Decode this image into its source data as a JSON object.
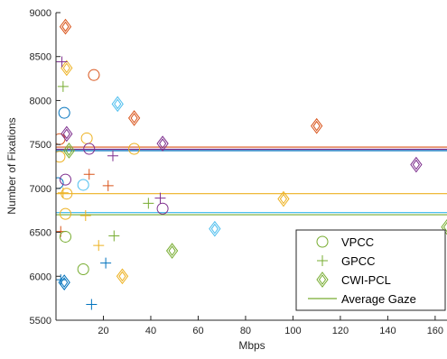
{
  "chart_data": {
    "type": "scatter",
    "xlabel": "Mbps",
    "ylabel": "Number of Fixations",
    "xlim": [
      0,
      165
    ],
    "ylim": [
      5500,
      9000
    ],
    "xticks": [
      20,
      40,
      60,
      80,
      100,
      120,
      140,
      160
    ],
    "yticks": [
      5500,
      6000,
      6500,
      7000,
      7500,
      8000,
      8500,
      9000
    ],
    "grid": false,
    "legend_position": "bottom-right",
    "legend": [
      {
        "label": "VPCC",
        "marker": "circle",
        "color": "#77ac30"
      },
      {
        "label": "GPCC",
        "marker": "plus",
        "color": "#77ac30"
      },
      {
        "label": "CWI-PCL",
        "marker": "diamond",
        "color": "#77ac30"
      },
      {
        "label": "Average Gaze",
        "marker": "line",
        "color": "#77ac30"
      }
    ],
    "average_lines": [
      {
        "color": "#d95319",
        "y": 7470
      },
      {
        "color": "#7e2f8e",
        "y": 7445
      },
      {
        "color": "#0072bd",
        "y": 7430
      },
      {
        "color": "#edb120",
        "y": 6940
      },
      {
        "color": "#4dbeee",
        "y": 6725
      },
      {
        "color": "#77ac30",
        "y": 6700
      }
    ],
    "series": [
      {
        "color": "#0072bd",
        "marker": "circle",
        "points": [
          [
            0.8,
            7060
          ],
          [
            3.5,
            7860
          ]
        ]
      },
      {
        "color": "#0072bd",
        "marker": "plus",
        "points": [
          [
            2,
            5960
          ],
          [
            21,
            6150
          ],
          [
            15,
            5680
          ]
        ]
      },
      {
        "color": "#0072bd",
        "marker": "diamond",
        "points": [
          [
            3.5,
            5930
          ]
        ]
      },
      {
        "color": "#d95319",
        "marker": "circle",
        "points": [
          [
            1.5,
            7560
          ],
          [
            16,
            8290
          ]
        ]
      },
      {
        "color": "#d95319",
        "marker": "plus",
        "points": [
          [
            2,
            6510
          ],
          [
            14,
            7160
          ],
          [
            22,
            7030
          ]
        ]
      },
      {
        "color": "#d95319",
        "marker": "diamond",
        "points": [
          [
            4,
            8840
          ],
          [
            33,
            7800
          ],
          [
            110,
            7710
          ]
        ]
      },
      {
        "color": "#edb120",
        "marker": "circle",
        "points": [
          [
            1.5,
            7360
          ],
          [
            4,
            6710
          ],
          [
            13,
            7570
          ],
          [
            33,
            7450
          ],
          [
            4.5,
            6940
          ]
        ]
      },
      {
        "color": "#edb120",
        "marker": "plus",
        "points": [
          [
            3,
            6950
          ],
          [
            12.5,
            6690
          ],
          [
            18,
            6350
          ]
        ]
      },
      {
        "color": "#edb120",
        "marker": "diamond",
        "points": [
          [
            4.5,
            8370
          ],
          [
            28,
            6000
          ],
          [
            96,
            6880
          ]
        ]
      },
      {
        "color": "#7e2f8e",
        "marker": "circle",
        "points": [
          [
            4,
            7100
          ],
          [
            14,
            7450
          ],
          [
            45,
            6770
          ]
        ]
      },
      {
        "color": "#7e2f8e",
        "marker": "plus",
        "points": [
          [
            2.5,
            8440
          ],
          [
            24,
            7370
          ],
          [
            44,
            6890
          ]
        ]
      },
      {
        "color": "#7e2f8e",
        "marker": "diamond",
        "points": [
          [
            4.5,
            7620
          ],
          [
            45,
            7510
          ],
          [
            152,
            7270
          ]
        ]
      },
      {
        "color": "#77ac30",
        "marker": "circle",
        "points": [
          [
            4,
            6450
          ],
          [
            11.5,
            6080
          ]
        ]
      },
      {
        "color": "#77ac30",
        "marker": "plus",
        "points": [
          [
            3,
            8160
          ],
          [
            24.5,
            6460
          ],
          [
            39,
            6830
          ]
        ]
      },
      {
        "color": "#77ac30",
        "marker": "diamond",
        "points": [
          [
            5.5,
            7430
          ],
          [
            49,
            6290
          ],
          [
            165,
            6560
          ]
        ]
      },
      {
        "color": "#4dbeee",
        "marker": "circle",
        "points": [
          [
            11.5,
            7040
          ]
        ]
      },
      {
        "color": "#4dbeee",
        "marker": "diamond",
        "points": [
          [
            26,
            7960
          ],
          [
            67,
            6540
          ]
        ]
      }
    ]
  }
}
